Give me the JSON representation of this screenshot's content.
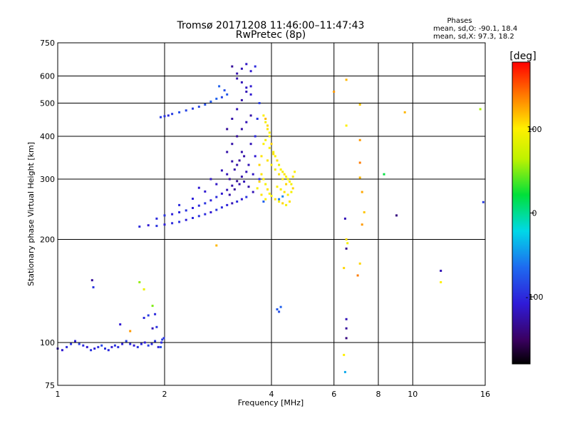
{
  "chart_data": {
    "type": "scatter",
    "title": "Tromsø 20171208 11:46:00–11:47:43",
    "subtitle": "RwPretec (8p)",
    "xlabel": "Frequency [MHz]",
    "ylabel": "Stationary phase Virtual Height [km]",
    "x_scale": "log",
    "y_scale": "log",
    "xlim": [
      1,
      16
    ],
    "ylim": [
      75,
      750
    ],
    "x_ticks": [
      1,
      2,
      4,
      6,
      8,
      10,
      16
    ],
    "y_ticks": [
      75,
      100,
      200,
      300,
      400,
      500,
      600,
      750
    ],
    "grid": true,
    "stats": {
      "heading": "Phases",
      "line_o": "mean, sd,O: -90.1, 18.4",
      "line_x": "mean, sd,X: 97.3, 18.2"
    },
    "colorbar": {
      "label": "[deg]",
      "range": [
        -180,
        180
      ],
      "ticks": [
        100,
        0,
        -100
      ]
    },
    "series_o": [
      [
        1.0,
        96,
        -120
      ],
      [
        1.03,
        95,
        -110
      ],
      [
        1.06,
        97,
        -100
      ],
      [
        1.09,
        99,
        -95
      ],
      [
        1.12,
        101,
        -105
      ],
      [
        1.15,
        99,
        -90
      ],
      [
        1.18,
        98,
        -100
      ],
      [
        1.21,
        97,
        -110
      ],
      [
        1.24,
        95,
        -95
      ],
      [
        1.27,
        96,
        -105
      ],
      [
        1.3,
        97,
        -100
      ],
      [
        1.33,
        98,
        -85
      ],
      [
        1.36,
        96,
        -95
      ],
      [
        1.39,
        95,
        -100
      ],
      [
        1.42,
        97,
        -110
      ],
      [
        1.45,
        98,
        -95
      ],
      [
        1.48,
        97,
        -100
      ],
      [
        1.52,
        99,
        -105
      ],
      [
        1.56,
        101,
        -90
      ],
      [
        1.6,
        99,
        -100
      ],
      [
        1.64,
        98,
        -110
      ],
      [
        1.68,
        97,
        -95
      ],
      [
        1.72,
        99,
        -100
      ],
      [
        1.76,
        100,
        -105
      ],
      [
        1.8,
        98,
        -90
      ],
      [
        1.84,
        99,
        -100
      ],
      [
        1.88,
        101,
        -95
      ],
      [
        1.92,
        97,
        -105
      ],
      [
        1.96,
        100,
        -100
      ],
      [
        1.99,
        103,
        -95
      ],
      [
        1.25,
        152,
        -130
      ],
      [
        1.26,
        145,
        -95
      ],
      [
        1.5,
        113,
        -110
      ],
      [
        1.75,
        118,
        -100
      ],
      [
        1.85,
        110,
        -120
      ],
      [
        1.88,
        121,
        -100
      ],
      [
        1.9,
        111,
        -95
      ],
      [
        1.8,
        120,
        -90
      ],
      [
        1.95,
        97,
        -80
      ],
      [
        1.97,
        102,
        -90
      ],
      [
        1.7,
        218,
        -100
      ],
      [
        1.8,
        220,
        -110
      ],
      [
        1.9,
        219,
        -95
      ],
      [
        2.0,
        221,
        -105
      ],
      [
        2.1,
        223,
        -100
      ],
      [
        2.2,
        225,
        -95
      ],
      [
        2.3,
        228,
        -105
      ],
      [
        2.4,
        231,
        -100
      ],
      [
        2.5,
        234,
        -95
      ],
      [
        2.6,
        237,
        -100
      ],
      [
        2.7,
        240,
        -110
      ],
      [
        2.8,
        244,
        -95
      ],
      [
        2.9,
        248,
        -100
      ],
      [
        3.0,
        252,
        -105
      ],
      [
        3.1,
        255,
        -120
      ],
      [
        3.2,
        258,
        -100
      ],
      [
        3.3,
        262,
        -110
      ],
      [
        3.4,
        266,
        -95
      ],
      [
        1.9,
        230,
        -100
      ],
      [
        2.0,
        235,
        -95
      ],
      [
        2.1,
        237,
        -105
      ],
      [
        2.2,
        240,
        -100
      ],
      [
        2.3,
        243,
        -95
      ],
      [
        2.4,
        247,
        -105
      ],
      [
        2.5,
        251,
        -100
      ],
      [
        2.6,
        255,
        -95
      ],
      [
        2.7,
        260,
        -105
      ],
      [
        2.8,
        266,
        -100
      ],
      [
        2.9,
        272,
        -110
      ],
      [
        3.0,
        279,
        -120
      ],
      [
        3.1,
        287,
        -125
      ],
      [
        3.2,
        296,
        -130
      ],
      [
        3.3,
        305,
        -125
      ],
      [
        3.4,
        315,
        -120
      ],
      [
        2.2,
        252,
        -100
      ],
      [
        2.4,
        263,
        -105
      ],
      [
        2.6,
        276,
        -110
      ],
      [
        2.8,
        290,
        -115
      ],
      [
        3.0,
        310,
        -120
      ],
      [
        3.2,
        330,
        -125
      ],
      [
        2.5,
        283,
        -110
      ],
      [
        2.7,
        300,
        -115
      ],
      [
        2.9,
        318,
        -120
      ],
      [
        3.1,
        338,
        -125
      ],
      [
        3.3,
        360,
        -125
      ],
      [
        3.5,
        380,
        -120
      ],
      [
        3.0,
        360,
        -125
      ],
      [
        3.1,
        380,
        -125
      ],
      [
        3.2,
        400,
        -130
      ],
      [
        3.3,
        420,
        -125
      ],
      [
        3.4,
        440,
        -120
      ],
      [
        3.5,
        460,
        -125
      ],
      [
        3.0,
        420,
        -130
      ],
      [
        3.1,
        450,
        -125
      ],
      [
        3.2,
        480,
        -120
      ],
      [
        3.3,
        510,
        -125
      ],
      [
        3.4,
        540,
        -120
      ],
      [
        3.5,
        560,
        -110
      ],
      [
        3.05,
        300,
        -130
      ],
      [
        3.15,
        320,
        -125
      ],
      [
        3.25,
        340,
        -130
      ],
      [
        3.35,
        350,
        -125
      ],
      [
        3.45,
        330,
        -120
      ],
      [
        3.55,
        310,
        -115
      ],
      [
        3.05,
        270,
        -125
      ],
      [
        3.15,
        280,
        -130
      ],
      [
        3.25,
        290,
        -125
      ],
      [
        3.35,
        295,
        -120
      ],
      [
        3.45,
        285,
        -125
      ],
      [
        3.55,
        275,
        -120
      ],
      [
        3.6,
        400,
        -100
      ],
      [
        3.65,
        450,
        -95
      ],
      [
        3.7,
        500,
        -90
      ],
      [
        3.6,
        350,
        -110
      ],
      [
        3.7,
        300,
        -100
      ],
      [
        3.1,
        640,
        -130
      ],
      [
        3.2,
        610,
        -125
      ],
      [
        3.3,
        630,
        -120
      ],
      [
        3.4,
        650,
        -115
      ],
      [
        3.5,
        620,
        -110
      ],
      [
        3.6,
        640,
        -100
      ],
      [
        3.2,
        590,
        -125
      ],
      [
        3.3,
        575,
        -120
      ],
      [
        3.4,
        555,
        -115
      ],
      [
        3.5,
        530,
        -110
      ],
      [
        1.95,
        455,
        -90
      ],
      [
        2.0,
        458,
        -95
      ],
      [
        2.05,
        460,
        -100
      ],
      [
        2.1,
        465,
        -90
      ],
      [
        2.2,
        470,
        -80
      ],
      [
        2.3,
        476,
        -85
      ],
      [
        2.4,
        482,
        -90
      ],
      [
        2.5,
        488,
        -85
      ],
      [
        2.6,
        495,
        -80
      ],
      [
        2.7,
        505,
        -75
      ],
      [
        2.8,
        515,
        -70
      ],
      [
        2.9,
        520,
        -85
      ],
      [
        2.85,
        560,
        -70
      ],
      [
        2.95,
        545,
        -80
      ],
      [
        3.0,
        530,
        -75
      ],
      [
        4.15,
        125,
        -75
      ],
      [
        4.2,
        123,
        -80
      ],
      [
        4.25,
        127,
        -70
      ],
      [
        6.5,
        117,
        -120
      ],
      [
        6.5,
        110,
        -130
      ],
      [
        6.5,
        103,
        -140
      ],
      [
        6.45,
        230,
        -120
      ],
      [
        6.5,
        188,
        -135
      ],
      [
        9.0,
        235,
        -140
      ],
      [
        12.0,
        162,
        -120
      ],
      [
        15.8,
        257,
        -90
      ],
      [
        4.2,
        262,
        -60
      ],
      [
        3.8,
        258,
        -70
      ],
      [
        4.3,
        267,
        -55
      ],
      [
        6.45,
        82,
        -40
      ]
    ],
    "series_x": [
      [
        3.8,
        460,
        100
      ],
      [
        3.85,
        440,
        95
      ],
      [
        3.9,
        420,
        105
      ],
      [
        3.95,
        400,
        100
      ],
      [
        4.0,
        380,
        110
      ],
      [
        4.05,
        360,
        95
      ],
      [
        4.1,
        350,
        100
      ],
      [
        4.15,
        340,
        105
      ],
      [
        4.2,
        330,
        90
      ],
      [
        4.25,
        320,
        100
      ],
      [
        4.3,
        315,
        95
      ],
      [
        4.35,
        310,
        105
      ],
      [
        4.4,
        305,
        100
      ],
      [
        4.45,
        300,
        90
      ],
      [
        4.5,
        295,
        100
      ],
      [
        4.55,
        290,
        95
      ],
      [
        4.6,
        305,
        105
      ],
      [
        4.65,
        315,
        100
      ],
      [
        3.7,
        330,
        110
      ],
      [
        3.75,
        310,
        105
      ],
      [
        3.8,
        300,
        100
      ],
      [
        3.85,
        290,
        95
      ],
      [
        3.9,
        280,
        105
      ],
      [
        3.95,
        272,
        100
      ],
      [
        4.0,
        268,
        95
      ],
      [
        4.1,
        262,
        105
      ],
      [
        4.2,
        258,
        100
      ],
      [
        4.3,
        255,
        110
      ],
      [
        4.4,
        252,
        95
      ],
      [
        4.5,
        258,
        105
      ],
      [
        3.9,
        340,
        105
      ],
      [
        4.0,
        330,
        100
      ],
      [
        4.1,
        320,
        95
      ],
      [
        4.2,
        310,
        105
      ],
      [
        4.3,
        300,
        100
      ],
      [
        4.4,
        290,
        110
      ],
      [
        3.95,
        370,
        100
      ],
      [
        4.05,
        355,
        105
      ],
      [
        3.85,
        390,
        95
      ],
      [
        3.95,
        410,
        100
      ],
      [
        3.9,
        430,
        110
      ],
      [
        3.85,
        450,
        120
      ],
      [
        4.15,
        285,
        100
      ],
      [
        4.25,
        280,
        95
      ],
      [
        4.35,
        275,
        105
      ],
      [
        4.45,
        270,
        100
      ],
      [
        4.55,
        275,
        95
      ],
      [
        4.6,
        282,
        110
      ],
      [
        3.75,
        270,
        105
      ],
      [
        3.85,
        262,
        100
      ],
      [
        3.65,
        282,
        95
      ],
      [
        3.7,
        295,
        110
      ],
      [
        3.75,
        350,
        105
      ],
      [
        3.8,
        380,
        100
      ],
      [
        2.8,
        192,
        120
      ],
      [
        6.0,
        540,
        130
      ],
      [
        6.5,
        585,
        120
      ],
      [
        7.1,
        495,
        115
      ],
      [
        7.1,
        390,
        130
      ],
      [
        7.1,
        335,
        140
      ],
      [
        7.1,
        303,
        120
      ],
      [
        7.2,
        275,
        125
      ],
      [
        7.3,
        240,
        115
      ],
      [
        7.2,
        221,
        130
      ],
      [
        7.1,
        170,
        110
      ],
      [
        7.0,
        157,
        140
      ],
      [
        6.5,
        430,
        100
      ],
      [
        6.5,
        200,
        105
      ],
      [
        6.55,
        195,
        95
      ],
      [
        6.4,
        165,
        110
      ],
      [
        6.4,
        92,
        100
      ],
      [
        9.5,
        470,
        120
      ],
      [
        12.0,
        150,
        100
      ],
      [
        15.5,
        480,
        60
      ],
      [
        8.3,
        310,
        20
      ],
      [
        1.7,
        150,
        55
      ],
      [
        1.75,
        143,
        90
      ],
      [
        1.85,
        128,
        50
      ],
      [
        1.6,
        108,
        130
      ]
    ]
  }
}
